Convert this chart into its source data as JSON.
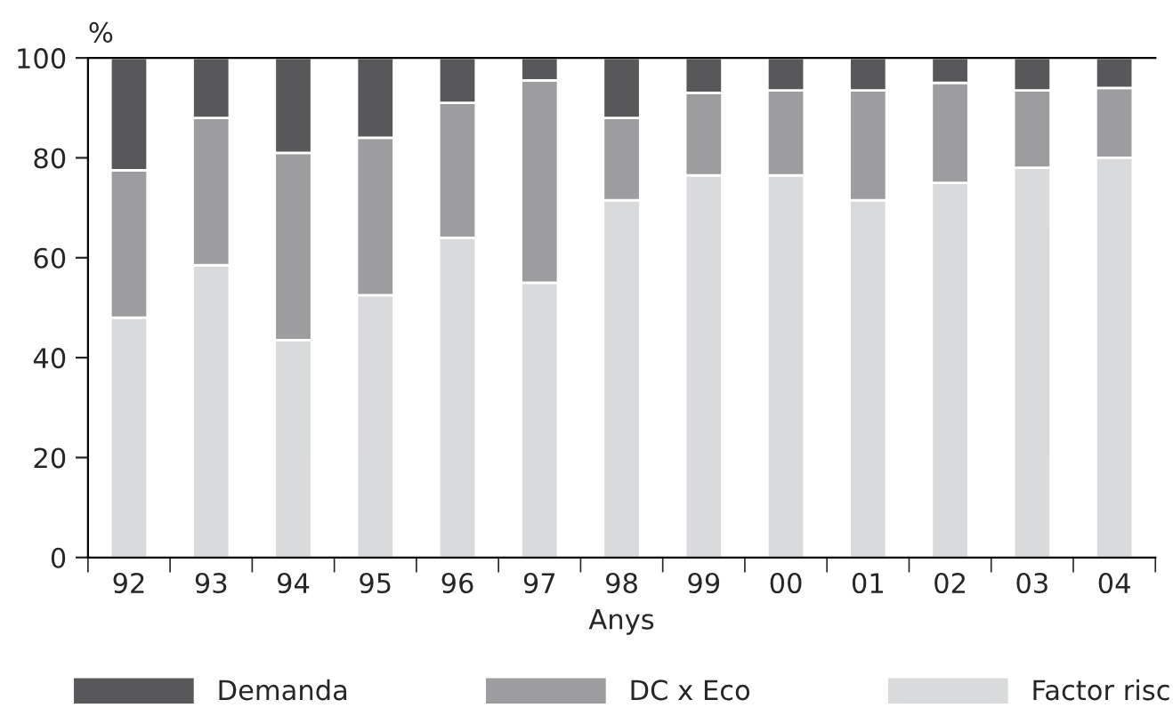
{
  "chart_data": {
    "type": "bar",
    "stacked": true,
    "xlabel": "Anys",
    "ylabel": "%",
    "categories": [
      "92",
      "93",
      "94",
      "95",
      "96",
      "97",
      "98",
      "99",
      "00",
      "01",
      "02",
      "03",
      "04"
    ],
    "series": [
      {
        "name": "Factor risc",
        "color": "#d9dadc",
        "values": [
          48,
          58.5,
          43.5,
          52.5,
          64,
          55,
          71.5,
          76.5,
          76.5,
          71.5,
          75,
          78,
          80
        ]
      },
      {
        "name": "DC x Eco",
        "color": "#9d9d9f",
        "values": [
          29.5,
          29.5,
          37.5,
          31.5,
          27,
          40.5,
          16.5,
          16.5,
          17,
          22,
          20,
          15.5,
          14
        ]
      },
      {
        "name": "Demanda",
        "color": "#58585a",
        "values": [
          22.5,
          12,
          19,
          16,
          9,
          4.5,
          12,
          7,
          6.5,
          6.5,
          5,
          6.5,
          6
        ]
      }
    ],
    "ylim": [
      0,
      100
    ],
    "yticks": [
      0,
      20,
      40,
      60,
      80,
      100
    ],
    "grid": false,
    "legend": "bottom"
  }
}
